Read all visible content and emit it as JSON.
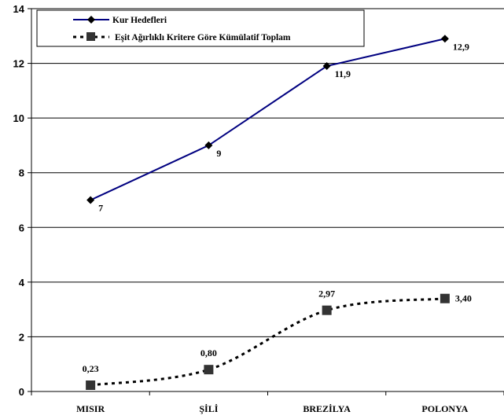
{
  "chart_data": {
    "type": "line",
    "categories": [
      "MISIR",
      "ŞİLİ",
      "BREZİLYA",
      "POLONYA"
    ],
    "ylim": [
      0,
      14
    ],
    "yticks": [
      0,
      2,
      4,
      6,
      8,
      10,
      12,
      14
    ],
    "grid": "horizontal",
    "legend_position": "top-left",
    "series": [
      {
        "name": "Kur Hedefleri",
        "values": [
          7,
          9,
          11.9,
          12.9
        ],
        "labels": [
          "7",
          "9",
          "11,9",
          "12,9"
        ],
        "color": "#000080",
        "line": "solid",
        "marker": "diamond"
      },
      {
        "name": "Eşit Ağırlıklı Kritere Göre Kümülatif Toplam",
        "values": [
          0.23,
          0.8,
          2.97,
          3.4
        ],
        "labels": [
          "0,23",
          "0,80",
          "2,97",
          "3,40"
        ],
        "color": "#000000",
        "marker_color": "#333333",
        "line": "dotted",
        "marker": "square"
      }
    ]
  }
}
